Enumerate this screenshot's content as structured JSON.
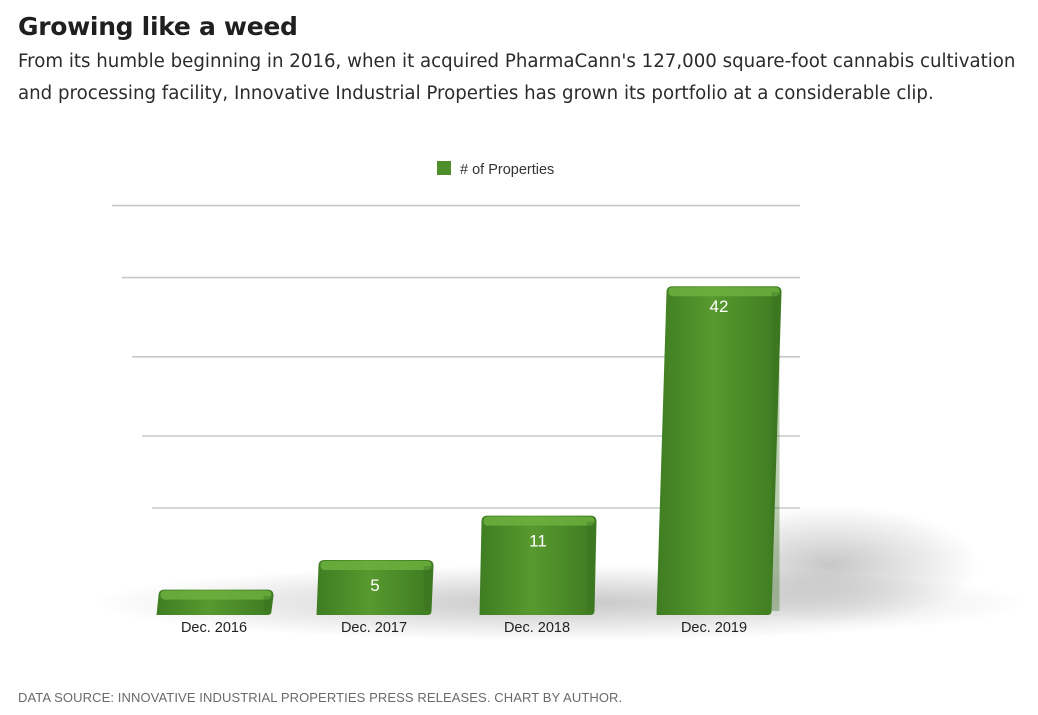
{
  "article": {
    "headline": "Growing like a weed",
    "subtitle": "From its humble beginning in 2016, when it acquired PharmaCann's 127,000 square-foot cannabis cultivation and processing facility, Innovative Industrial Properties has grown its portfolio at a considerable clip.",
    "caption": "DATA SOURCE: INNOVATIVE INDUSTRIAL PROPERTIES PRESS RELEASES. CHART BY AUTHOR."
  },
  "colors": {
    "bar": "#4e8f2c",
    "bar_top": "#6cb040",
    "bar_dark": "#3a7020",
    "grid": "#c8c8c8"
  },
  "chart_data": {
    "type": "bar",
    "title": "",
    "xlabel": "",
    "ylabel": "",
    "categories": [
      "Dec. 2016",
      "Dec. 2017",
      "Dec. 2018",
      "Dec. 2019"
    ],
    "series": [
      {
        "name": "# of Properties",
        "values": [
          1,
          5,
          11,
          42
        ]
      }
    ],
    "data_labels": [
      "",
      "5",
      "11",
      "42"
    ],
    "ylim": [
      0,
      52
    ],
    "grid": true,
    "legend_position": "top-center",
    "style": "3d"
  }
}
